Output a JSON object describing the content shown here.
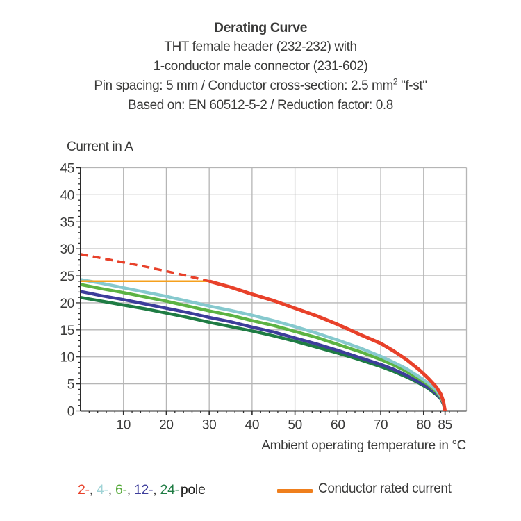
{
  "header": {
    "title": "Derating Curve",
    "line1": "THT female header (232-232) with",
    "line2": "1-conductor male connector (231-602)",
    "line3_prefix": "Pin spacing: 5 mm / Conductor cross-section: 2.5 mm",
    "line3_sup": "2",
    "line3_suffix": " \"f-st\"",
    "line4": "Based on: EN 60512-5-2 / Reduction factor: 0.8"
  },
  "chart_data": {
    "type": "line",
    "title": "Derating Curve",
    "xlabel": "Ambient operating temperature in °C",
    "ylabel": "Current in A",
    "xlim": [
      0,
      90
    ],
    "ylim": [
      0,
      45
    ],
    "x_major_ticks": [
      10,
      20,
      30,
      40,
      50,
      60,
      70,
      80,
      85
    ],
    "x_minor_step": 2,
    "y_major_ticks": [
      0,
      5,
      10,
      15,
      20,
      25,
      30,
      35,
      40,
      45
    ],
    "y_minor_step": 1,
    "x_grid_lines": [
      10,
      20,
      30,
      40,
      50,
      60,
      70,
      80,
      90
    ],
    "y_grid_lines": [
      5,
      10,
      15,
      20,
      25,
      30,
      35,
      40,
      45
    ],
    "grid": true,
    "legend_position": "bottom",
    "series": [
      {
        "name": "24-pole",
        "color": "#1f7c44",
        "width": 4.5,
        "dash": null,
        "points": [
          [
            0,
            21.0
          ],
          [
            5,
            20.3
          ],
          [
            10,
            19.6
          ],
          [
            15,
            18.9
          ],
          [
            20,
            18.1
          ],
          [
            25,
            17.3
          ],
          [
            30,
            16.4
          ],
          [
            35,
            15.6
          ],
          [
            40,
            14.8
          ],
          [
            45,
            13.9
          ],
          [
            50,
            12.9
          ],
          [
            55,
            11.8
          ],
          [
            60,
            10.7
          ],
          [
            65,
            9.5
          ],
          [
            70,
            8.2
          ],
          [
            73,
            7.3
          ],
          [
            76,
            6.3
          ],
          [
            79,
            5.1
          ],
          [
            81,
            4.2
          ],
          [
            83,
            3.0
          ],
          [
            84,
            2.2
          ],
          [
            84.6,
            1.3
          ],
          [
            85,
            0
          ]
        ]
      },
      {
        "name": "12-pole",
        "color": "#3d3d9b",
        "width": 4.5,
        "dash": null,
        "points": [
          [
            0,
            22.1
          ],
          [
            5,
            21.3
          ],
          [
            10,
            20.6
          ],
          [
            15,
            19.8
          ],
          [
            20,
            19.0
          ],
          [
            25,
            18.2
          ],
          [
            30,
            17.3
          ],
          [
            35,
            16.5
          ],
          [
            40,
            15.5
          ],
          [
            45,
            14.6
          ],
          [
            50,
            13.5
          ],
          [
            55,
            12.4
          ],
          [
            60,
            11.2
          ],
          [
            65,
            9.9
          ],
          [
            70,
            8.6
          ],
          [
            73,
            7.7
          ],
          [
            76,
            6.6
          ],
          [
            79,
            5.3
          ],
          [
            81,
            4.4
          ],
          [
            83,
            3.2
          ],
          [
            84,
            2.3
          ],
          [
            84.6,
            1.4
          ],
          [
            85,
            0
          ]
        ]
      },
      {
        "name": "6-pole",
        "color": "#5cb343",
        "width": 4.5,
        "dash": null,
        "points": [
          [
            0,
            23.4
          ],
          [
            5,
            22.6
          ],
          [
            10,
            21.9
          ],
          [
            15,
            21.1
          ],
          [
            20,
            20.3
          ],
          [
            25,
            19.4
          ],
          [
            30,
            18.5
          ],
          [
            35,
            17.7
          ],
          [
            40,
            16.7
          ],
          [
            45,
            15.8
          ],
          [
            50,
            14.7
          ],
          [
            55,
            13.6
          ],
          [
            60,
            12.3
          ],
          [
            65,
            11.0
          ],
          [
            70,
            9.5
          ],
          [
            73,
            8.5
          ],
          [
            76,
            7.3
          ],
          [
            79,
            5.9
          ],
          [
            81,
            4.9
          ],
          [
            83,
            3.5
          ],
          [
            84,
            2.5
          ],
          [
            84.6,
            1.5
          ],
          [
            85,
            0
          ]
        ]
      },
      {
        "name": "4-pole",
        "color": "#86c9ce",
        "width": 4.5,
        "dash": null,
        "points": [
          [
            0,
            24.3
          ],
          [
            5,
            23.6
          ],
          [
            10,
            22.8
          ],
          [
            15,
            22.0
          ],
          [
            20,
            21.2
          ],
          [
            25,
            20.3
          ],
          [
            30,
            19.4
          ],
          [
            35,
            18.6
          ],
          [
            40,
            17.7
          ],
          [
            45,
            16.7
          ],
          [
            50,
            15.6
          ],
          [
            55,
            14.4
          ],
          [
            60,
            13.1
          ],
          [
            65,
            11.7
          ],
          [
            70,
            10.1
          ],
          [
            73,
            9.0
          ],
          [
            76,
            7.8
          ],
          [
            79,
            6.3
          ],
          [
            81,
            5.2
          ],
          [
            83,
            3.8
          ],
          [
            84,
            2.7
          ],
          [
            84.6,
            1.6
          ],
          [
            85,
            0
          ]
        ]
      },
      {
        "name": "conductor-rated-current",
        "color": "#f5a01e",
        "width": 2.5,
        "dash": null,
        "points": [
          [
            0,
            24
          ],
          [
            30.5,
            24
          ]
        ]
      },
      {
        "name": "2-pole-dashed",
        "color": "#e8412a",
        "width": 3.5,
        "dash": [
          11,
          7
        ],
        "points": [
          [
            0,
            29
          ],
          [
            5,
            28.25
          ],
          [
            10,
            27.5
          ],
          [
            15,
            26.7
          ],
          [
            20,
            25.85
          ],
          [
            25,
            24.95
          ],
          [
            30,
            24
          ]
        ]
      },
      {
        "name": "2-pole",
        "color": "#e8412a",
        "width": 5,
        "dash": null,
        "points": [
          [
            30,
            24
          ],
          [
            35,
            22.9
          ],
          [
            40,
            21.6
          ],
          [
            45,
            20.4
          ],
          [
            50,
            19.0
          ],
          [
            55,
            17.6
          ],
          [
            60,
            16.0
          ],
          [
            65,
            14.2
          ],
          [
            70,
            12.5
          ],
          [
            73,
            11.1
          ],
          [
            76,
            9.5
          ],
          [
            79,
            7.6
          ],
          [
            81,
            6.1
          ],
          [
            83,
            4.4
          ],
          [
            84,
            3.1
          ],
          [
            84.6,
            1.8
          ],
          [
            85,
            0
          ]
        ]
      }
    ]
  },
  "legend": {
    "poles": [
      {
        "label": "2-",
        "color": "#e8412a"
      },
      {
        "label": "4-",
        "color": "#9fd3d6"
      },
      {
        "label": "6-",
        "color": "#54a937"
      },
      {
        "label": "12-",
        "color": "#3d3d9b"
      },
      {
        "label": "24-",
        "color": "#1f7c44"
      }
    ],
    "separator": ", ",
    "pole_word": "pole",
    "rated_label": "Conductor rated current",
    "rated_color": "#ef7f1d"
  },
  "colors": {
    "grid": "#b5b5b5",
    "axis": "#2b2b2b",
    "text": "#3a3a39"
  }
}
